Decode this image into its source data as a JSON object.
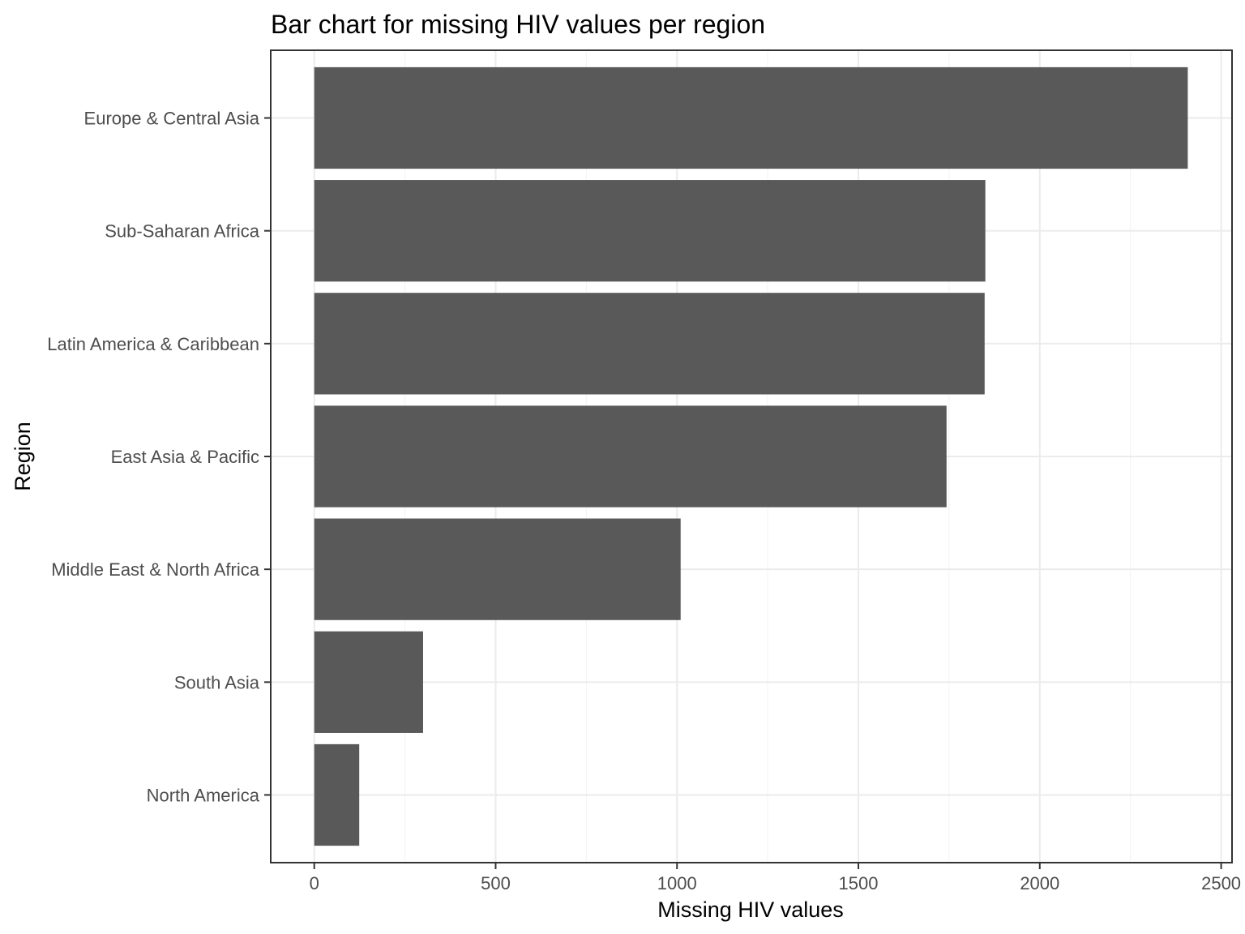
{
  "chart_data": {
    "type": "bar",
    "orientation": "horizontal",
    "title": "Bar chart for missing HIV values per region",
    "xlabel": "Missing HIV values",
    "ylabel": "Region",
    "categories": [
      "Europe & Central Asia",
      "Sub-Saharan Africa",
      "Latin America & Caribbean",
      "East Asia & Pacific",
      "Middle East & North Africa",
      "South Asia",
      "North America"
    ],
    "values": [
      2408,
      1850,
      1848,
      1743,
      1010,
      300,
      124
    ],
    "xlim": [
      -120,
      2530
    ],
    "xticks": [
      0,
      500,
      1000,
      1500,
      2000,
      2500
    ],
    "xtick_labels": [
      "0",
      "500",
      "1000",
      "1500",
      "2000",
      "2500"
    ],
    "grid": true,
    "bar_color": "#595959"
  }
}
